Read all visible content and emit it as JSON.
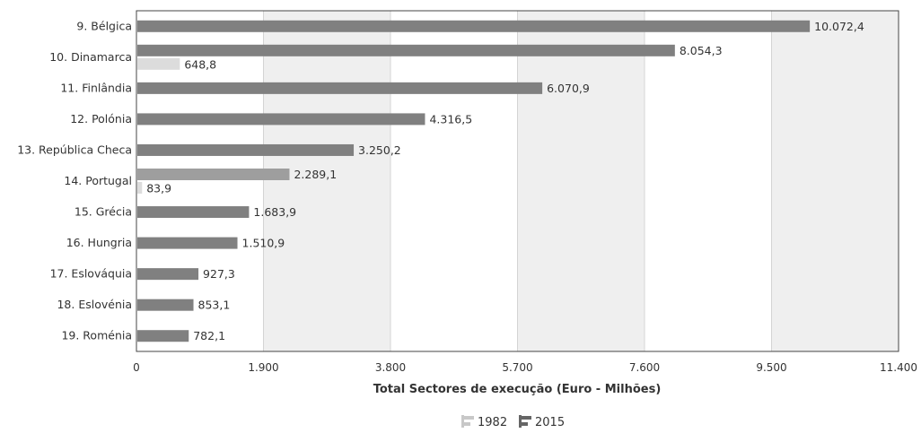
{
  "chart_data": {
    "type": "bar",
    "orientation": "horizontal",
    "categories": [
      "9. Bélgica",
      "10. Dinamarca",
      "11. Finlândia",
      "12. Polónia",
      "13. República Checa",
      "14. Portugal",
      "15. Grécia",
      "16. Hungria",
      "17. Eslováquia",
      "18. Eslovénia",
      "19. Roménia"
    ],
    "series": [
      {
        "name": "1982",
        "values": [
          null,
          648.8,
          null,
          null,
          null,
          83.9,
          null,
          null,
          null,
          null,
          null
        ],
        "labels": [
          "",
          "648,8",
          "",
          "",
          "",
          "83,9",
          "",
          "",
          "",
          "",
          ""
        ]
      },
      {
        "name": "2015",
        "values": [
          10072.4,
          8054.3,
          6070.9,
          4316.5,
          3250.2,
          2289.1,
          1683.9,
          1510.9,
          927.3,
          853.1,
          782.1
        ],
        "labels": [
          "10.072,4",
          "8.054,3",
          "6.070,9",
          "4.316,5",
          "3.250,2",
          "2.289,1",
          "1.683,9",
          "1.510,9",
          "927,3",
          "853,1",
          "782,1"
        ]
      }
    ],
    "highlight_category": "14. Portugal",
    "xlabel": "Total Sectores de execução (Euro - Milhões)",
    "xlim": [
      0,
      11400
    ],
    "xticks": [
      0,
      1900,
      3800,
      5700,
      7600,
      9500,
      11400
    ],
    "xtick_labels": [
      "0",
      "1.900",
      "3.800",
      "5.700",
      "7.600",
      "9.500",
      "11.400"
    ],
    "grid": "vertical alternating bands",
    "legend_position": "bottom-center",
    "colors": {
      "series_2015": "#808080",
      "series_2015_highlight": "#9e9e9e",
      "series_1982": "#dcdcdc",
      "band": "#efefef",
      "gridline": "#d4d4d4",
      "text": "#333333"
    }
  }
}
